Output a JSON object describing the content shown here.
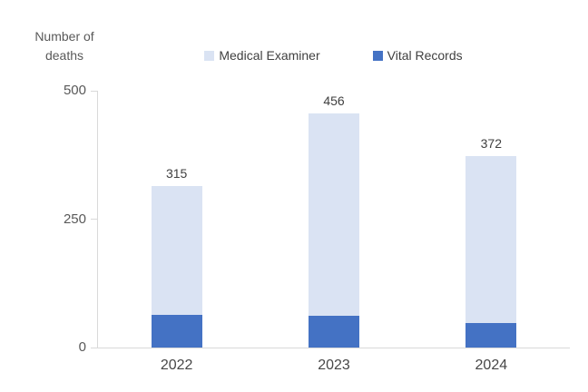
{
  "chart_data": {
    "type": "bar",
    "stacked": true,
    "axis_title": "Number of deaths",
    "categories": [
      "2022",
      "2023",
      "2024"
    ],
    "series": [
      {
        "name": "Medical Examiner",
        "color": "#dae3f3",
        "values": [
          251,
          394,
          324
        ]
      },
      {
        "name": "Vital Records",
        "color": "#4472c4",
        "values": [
          64,
          62,
          48
        ]
      }
    ],
    "stack_order_bottom_to_top": [
      "Vital Records",
      "Medical Examiner"
    ],
    "totals": [
      315,
      456,
      372
    ],
    "ylim": [
      0,
      500
    ],
    "yticks": [
      0,
      250,
      500
    ],
    "legend_position": "top",
    "grid": false,
    "colors": {
      "axis_line": "#d9d9d9",
      "tick_label": "#595959",
      "data_label": "#404040",
      "category_label": "#474747",
      "axis_title": "#595959",
      "legend_text": "#404040",
      "background": "#ffffff"
    }
  }
}
